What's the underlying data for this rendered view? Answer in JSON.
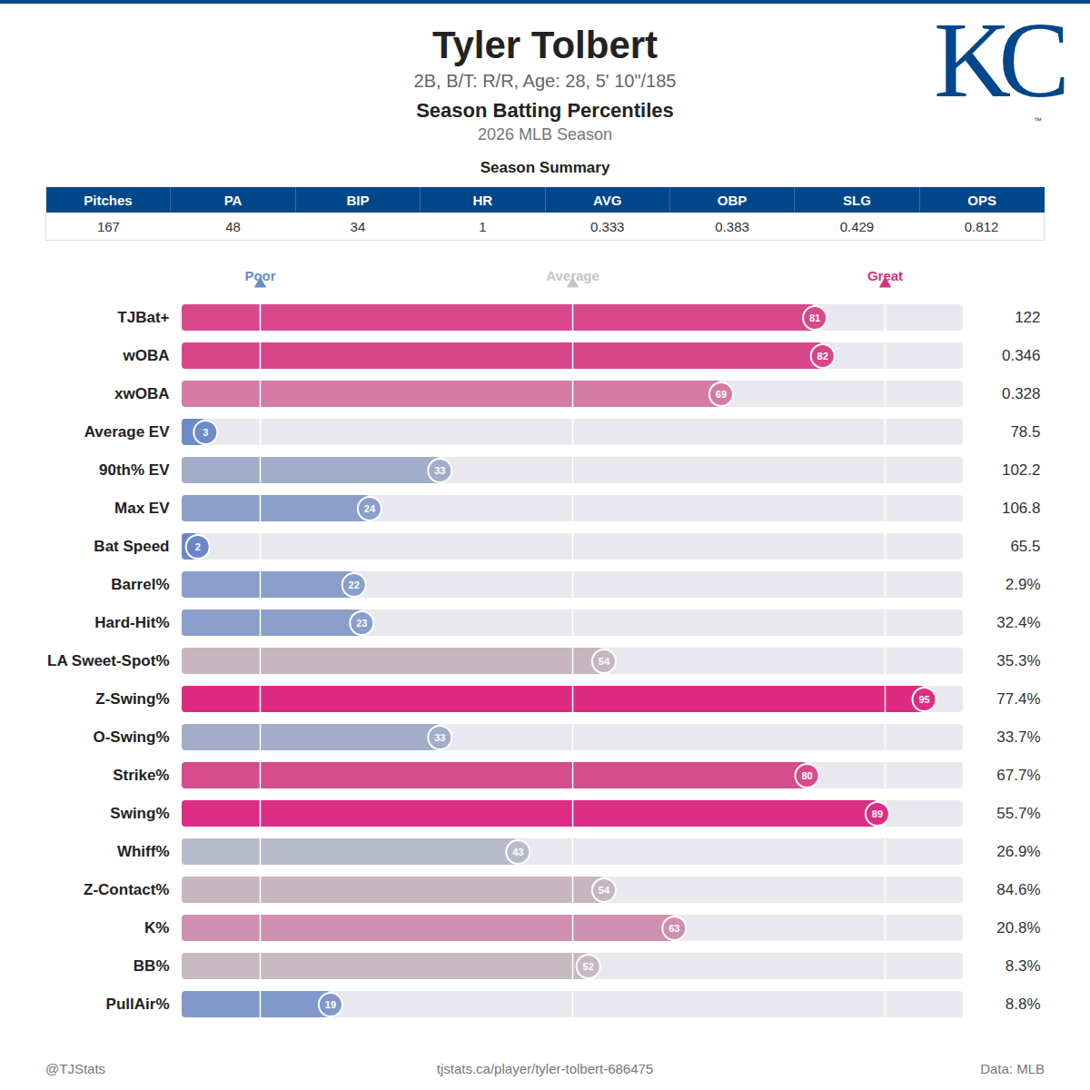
{
  "header": {
    "title": "Tyler Tolbert",
    "subtitle": "2B, B/T: R/R, Age: 28, 5' 10\"/185",
    "section": "Season Batting Percentiles",
    "season": "2026 MLB Season",
    "logo": "KC",
    "logo_mark": "™"
  },
  "summary": {
    "title": "Season Summary",
    "columns": [
      "Pitches",
      "PA",
      "BIP",
      "HR",
      "AVG",
      "OBP",
      "SLG",
      "OPS"
    ],
    "values": [
      "167",
      "48",
      "34",
      "1",
      "0.333",
      "0.383",
      "0.429",
      "0.812"
    ]
  },
  "chart_data": {
    "type": "bar",
    "orientation": "horizontal",
    "data_labels": true,
    "categories": [
      "TJBat+",
      "wOBA",
      "xwOBA",
      "Average EV",
      "90th% EV",
      "Max EV",
      "Bat Speed",
      "Barrel%",
      "Hard-Hit%",
      "LA Sweet-Spot%",
      "Z-Swing%",
      "O-Swing%",
      "Strike%",
      "Swing%",
      "Whiff%",
      "Z-Contact%",
      "K%",
      "BB%",
      "PullAir%"
    ],
    "values": [
      81,
      82,
      69,
      3,
      33,
      24,
      2,
      22,
      23,
      54,
      95,
      33,
      80,
      89,
      43,
      54,
      63,
      52,
      19
    ],
    "stat_labels": [
      "122",
      "0.346",
      "0.328",
      "78.5",
      "102.2",
      "106.8",
      "65.5",
      "2.9%",
      "32.4%",
      "35.3%",
      "77.4%",
      "33.7%",
      "67.7%",
      "55.7%",
      "26.9%",
      "84.6%",
      "20.8%",
      "8.3%",
      "8.8%"
    ],
    "colors": [
      "#d9478c",
      "#d8458b",
      "#d47ba5",
      "#6d8bc9",
      "#a1adc9",
      "#8b9fcb",
      "#6a88c8",
      "#8a9ecc",
      "#8a9ecc",
      "#c7b6bf",
      "#dd2b82",
      "#a1adc9",
      "#d64b8c",
      "#dd2c84",
      "#b8bcca",
      "#c7b6bf",
      "#cf8fae",
      "#c8b8c0",
      "#8098cb"
    ],
    "xlim": [
      0,
      100
    ],
    "xticks": [
      {
        "value": 10,
        "label": "Poor"
      },
      {
        "value": 50,
        "label": "Average"
      },
      {
        "value": 90,
        "label": "Great"
      }
    ],
    "grid": true
  },
  "footer": {
    "left": "@TJStats",
    "center": "tjstats.ca/player/tyler-tolbert-686475",
    "right": "Data: MLB"
  }
}
